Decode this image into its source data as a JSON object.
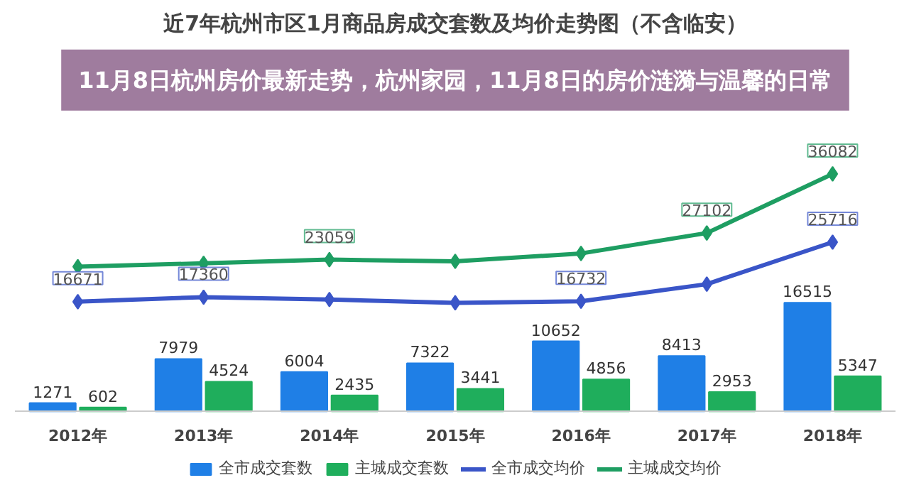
{
  "chart_data": {
    "type": "bar",
    "title": "近7年杭州市区1月商品房成交套数及均价走势图（不含临安）",
    "categories": [
      "2012年",
      "2013年",
      "2014年",
      "2015年",
      "2016年",
      "2017年",
      "2018年"
    ],
    "series": [
      {
        "name": "全市成交套数",
        "color": "#1f7fe6",
        "values": [
          1271,
          7979,
          6004,
          7322,
          10652,
          8413,
          16515
        ],
        "data_labels": true
      },
      {
        "name": "主城成交套数",
        "color": "#1fae5c",
        "values": [
          602,
          4524,
          2435,
          3441,
          4856,
          2953,
          5347
        ],
        "data_labels": true
      },
      {
        "name": "全市成交均价",
        "type": "line",
        "color": "#3a55c8",
        "values": [
          16671,
          17360,
          17000,
          16500,
          16732,
          19338,
          25716
        ],
        "value_labels": [
          "16671",
          "17360",
          null,
          null,
          "16732",
          null,
          "25716"
        ]
      },
      {
        "name": "主城成交均价",
        "type": "line",
        "color": "#1e9e62",
        "values": [
          22000,
          22500,
          23059,
          22800,
          24000,
          27102,
          36082
        ],
        "value_labels": [
          null,
          null,
          "23059",
          null,
          null,
          "27102",
          "36082"
        ]
      }
    ],
    "marker": "diamond",
    "grid": false,
    "legend": "bottom",
    "annotations": [
      "11月8日杭州房价最新走势，杭州家园，11月8日的房价涟漪与温馨的日常"
    ]
  }
}
